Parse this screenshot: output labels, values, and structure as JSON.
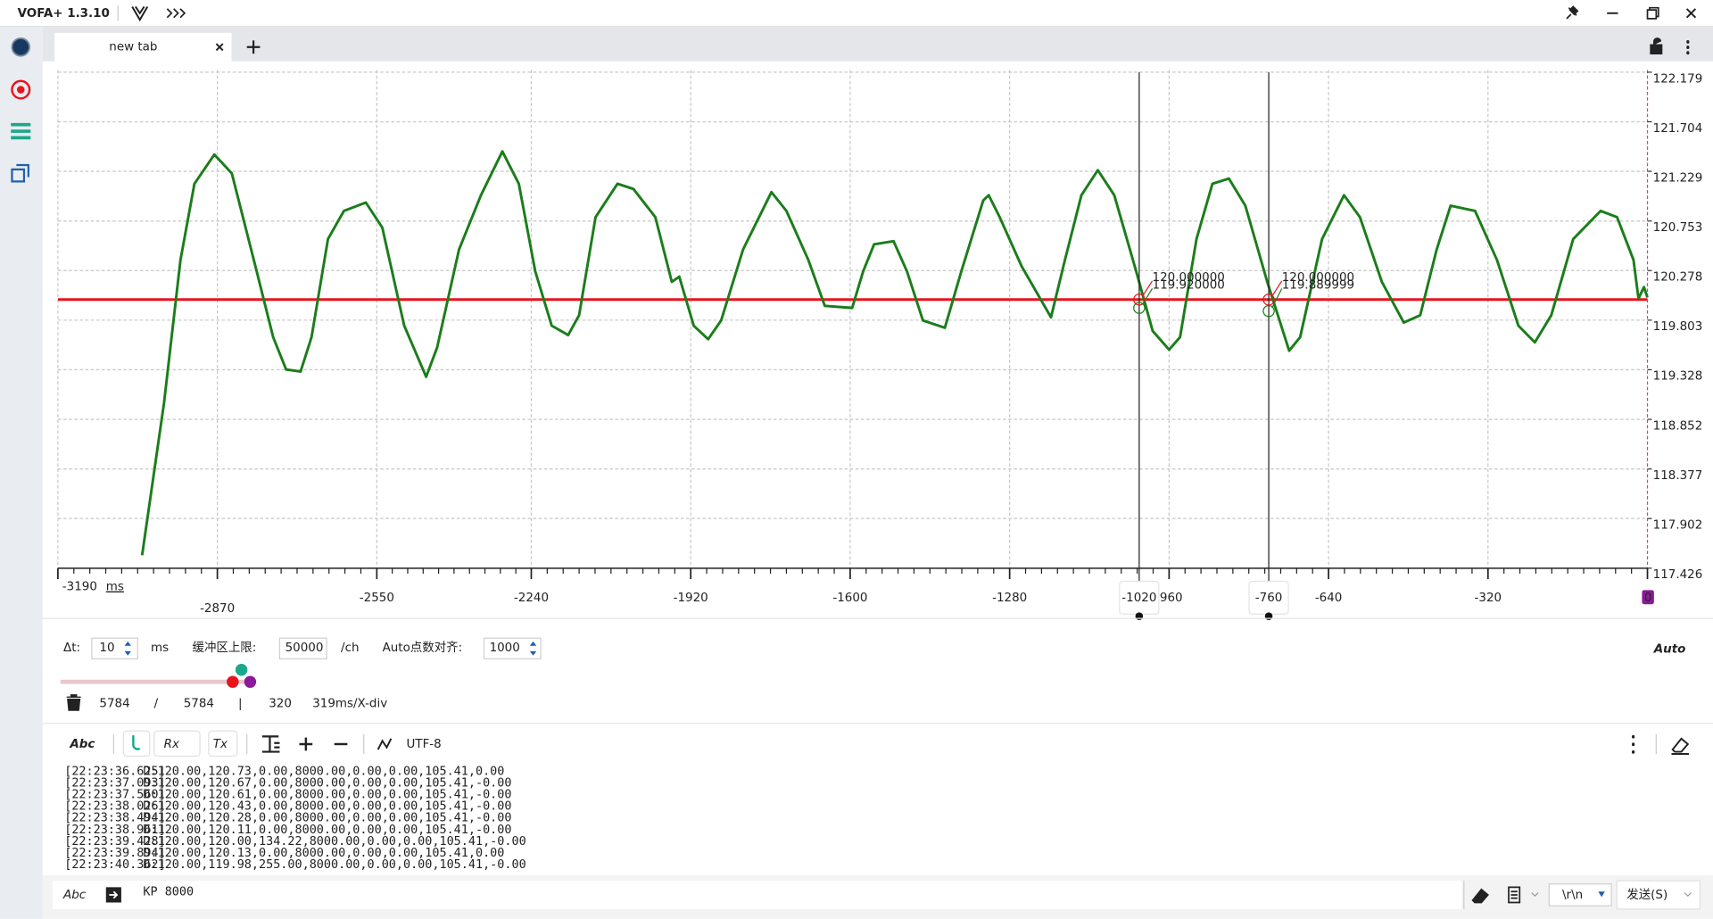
{
  "app": {
    "title": "VOFA+ 1.3.10"
  },
  "tabs": [
    {
      "label": "new tab"
    }
  ],
  "chart_data": {
    "type": "line",
    "x": [
      -3021,
      -2977,
      -2944,
      -2916,
      -2876,
      -2841,
      -2791,
      -2758,
      -2732,
      -2703,
      -2681,
      -2648,
      -2616,
      -2572,
      -2539,
      -2495,
      -2451,
      -2429,
      -2385,
      -2341,
      -2298,
      -2265,
      -2232,
      -2199,
      -2166,
      -2144,
      -2111,
      -2067,
      -2035,
      -1991,
      -1958,
      -1943,
      -1914,
      -1885,
      -1859,
      -1815,
      -1758,
      -1728,
      -1684,
      -1651,
      -1596,
      -1574,
      -1552,
      -1513,
      -1486,
      -1454,
      -1410,
      -1377,
      -1333,
      -1322,
      -1300,
      -1256,
      -1197,
      -1169,
      -1136,
      -1103,
      -1070,
      -1026,
      -993,
      -960,
      -938,
      -905,
      -873,
      -840,
      -807,
      -763,
      -719,
      -697,
      -653,
      -609,
      -577,
      -533,
      -489,
      -456,
      -423,
      -395,
      -346,
      -302,
      -259,
      -226,
      -193,
      -149,
      -94,
      -61,
      -28,
      -18,
      -7,
      0
    ],
    "series": [
      {
        "color": "#1b7d1b",
        "values": [
          117.55,
          119.01,
          120.38,
          121.11,
          121.39,
          121.21,
          120.27,
          119.64,
          119.33,
          119.31,
          119.64,
          120.58,
          120.85,
          120.93,
          120.69,
          119.75,
          119.26,
          119.54,
          120.48,
          121.0,
          121.42,
          121.11,
          120.27,
          119.75,
          119.66,
          119.85,
          120.79,
          121.11,
          121.06,
          120.79,
          120.17,
          120.22,
          119.75,
          119.62,
          119.8,
          120.48,
          121.03,
          120.85,
          120.38,
          119.94,
          119.92,
          120.27,
          120.53,
          120.56,
          120.27,
          119.8,
          119.73,
          120.27,
          120.95,
          121.0,
          120.79,
          120.32,
          119.83,
          120.38,
          121.0,
          121.24,
          121.0,
          120.27,
          119.7,
          119.52,
          119.64,
          120.58,
          121.11,
          121.16,
          120.9,
          120.17,
          119.51,
          119.64,
          120.58,
          121.0,
          120.79,
          120.17,
          119.78,
          119.85,
          120.48,
          120.9,
          120.85,
          120.38,
          119.75,
          119.59,
          119.85,
          120.58,
          120.85,
          120.79,
          120.38,
          120.01,
          120.12,
          120.02
        ]
      }
    ],
    "reference_line": {
      "value": 120,
      "color": "#e8141c"
    },
    "xlim": [
      -3190,
      0
    ],
    "xticks": [
      -3190,
      -2870,
      -2550,
      -2240,
      -1920,
      -1600,
      -1280,
      -960,
      -640,
      -320,
      0
    ],
    "x_unit": "ms",
    "ylim": [
      117.426,
      122.179
    ],
    "yticks": [
      117.426,
      117.902,
      118.377,
      118.852,
      119.328,
      119.803,
      120.278,
      120.753,
      121.229,
      121.704,
      122.179
    ],
    "grid": true,
    "cursors": [
      {
        "x": -1020,
        "readings": [
          "120.000000",
          "119.920000"
        ]
      },
      {
        "x": -760,
        "readings": [
          "120.000000",
          "119.889999"
        ]
      }
    ]
  },
  "controls": {
    "dt_label": "Δt:",
    "dt_value": 10,
    "dt_unit": "ms",
    "buffer_label": "缓冲区上限:",
    "buffer_value": 50000,
    "buffer_unit": "/ch",
    "auto_align_label": "Auto点数对齐:",
    "auto_align_value": 1000,
    "mode": "Auto"
  },
  "stats": {
    "received": 5784,
    "separator": "/",
    "total": 5784,
    "divider": "|",
    "window": 320,
    "scale": "319ms/X-div"
  },
  "toolbar": {
    "format": "Abc",
    "rx": "Rx",
    "tx": "Tx",
    "encoding": "UTF-8"
  },
  "log": [
    {
      "time": "[22:23:36.625]",
      "text": "D:120.00,120.73,0.00,8000.00,0.00,0.00,105.41,0.00"
    },
    {
      "time": "[22:23:37.093]",
      "text": "D:120.00,120.67,0.00,8000.00,0.00,0.00,105.41,-0.00"
    },
    {
      "time": "[22:23:37.560]",
      "text": "D:120.00,120.61,0.00,8000.00,0.00,0.00,105.41,-0.00"
    },
    {
      "time": "[22:23:38.026]",
      "text": "D:120.00,120.43,0.00,8000.00,0.00,0.00,105.41,-0.00"
    },
    {
      "time": "[22:23:38.494]",
      "text": "D:120.00,120.28,0.00,8000.00,0.00,0.00,105.41,-0.00"
    },
    {
      "time": "[22:23:38.961]",
      "text": "D:120.00,120.11,0.00,8000.00,0.00,0.00,105.41,-0.00"
    },
    {
      "time": "[22:23:39.428]",
      "text": "D:120.00,120.00,134.22,8000.00,0.00,0.00,105.41,-0.00"
    },
    {
      "time": "[22:23:39.894]",
      "text": "D:120.00,120.13,0.00,8000.00,0.00,0.00,105.41,0.00"
    },
    {
      "time": "[22:23:40.362]",
      "text": "D:120.00,119.98,255.00,8000.00,0.00,0.00,105.41,-0.00"
    }
  ],
  "input": {
    "format": "Abc",
    "text": "KP 8000",
    "line_ending": "\\r\\n",
    "send": "发送(S)"
  }
}
